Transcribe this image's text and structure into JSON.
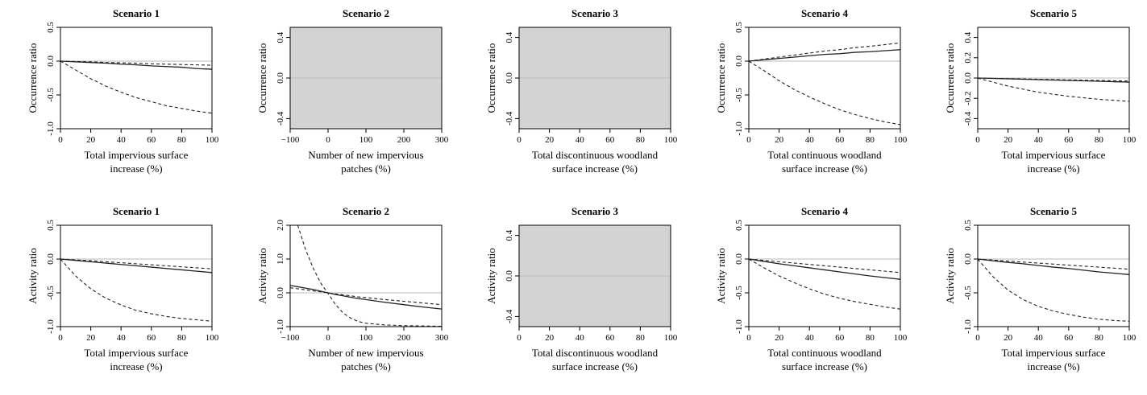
{
  "figure": {
    "line_color": "#222222",
    "ref_line_color": "#bbbbbb",
    "shade_color": "#d3d3d3"
  },
  "chart_data": [
    {
      "type": "line",
      "title": "Scenario 1",
      "ylabel": "Occurrence ratio",
      "xlabel": [
        "Total impervious surface",
        "increase (%)"
      ],
      "xlim": [
        0,
        100
      ],
      "ylim": [
        -1.0,
        0.5
      ],
      "xticks": [
        0,
        20,
        40,
        60,
        80,
        100
      ],
      "yticks": [
        -1.0,
        -0.5,
        0.0,
        0.5
      ],
      "ytick_labels": [
        "-1.0",
        "-0.5",
        "0.0",
        "0.5"
      ],
      "shaded": false,
      "reference_y": 0,
      "x": [
        0,
        10,
        20,
        30,
        40,
        50,
        60,
        70,
        80,
        90,
        100
      ],
      "series": [
        {
          "style": "solid",
          "values": [
            0,
            -0.01,
            -0.02,
            -0.03,
            -0.045,
            -0.055,
            -0.07,
            -0.08,
            -0.09,
            -0.11,
            -0.12
          ]
        },
        {
          "style": "dashed",
          "values": [
            0,
            -0.005,
            -0.01,
            -0.02,
            -0.025,
            -0.03,
            -0.04,
            -0.045,
            -0.05,
            -0.055,
            -0.06
          ]
        },
        {
          "style": "dashed",
          "values": [
            0,
            -0.13,
            -0.26,
            -0.37,
            -0.46,
            -0.54,
            -0.6,
            -0.66,
            -0.7,
            -0.74,
            -0.77
          ]
        }
      ]
    },
    {
      "type": "line",
      "title": "Scenario 2",
      "ylabel": "Occurrence ratio",
      "xlabel": [
        "Number of new impervious",
        "patches (%)"
      ],
      "xlim": [
        -100,
        300
      ],
      "ylim": [
        -0.5,
        0.5
      ],
      "xticks": [
        -100,
        0,
        100,
        200,
        300
      ],
      "yticks": [
        -0.4,
        0.0,
        0.4
      ],
      "ytick_labels": [
        "-0.4",
        "0.0",
        "0.4"
      ],
      "shaded": true,
      "reference_y": 0,
      "x": [],
      "series": []
    },
    {
      "type": "line",
      "title": "Scenario 3",
      "ylabel": "Occurrence ratio",
      "xlabel": [
        "Total discontinuous woodland",
        "surface increase (%)"
      ],
      "xlim": [
        0,
        100
      ],
      "ylim": [
        -0.5,
        0.5
      ],
      "xticks": [
        0,
        20,
        40,
        60,
        80,
        100
      ],
      "yticks": [
        -0.4,
        0.0,
        0.4
      ],
      "ytick_labels": [
        "-0.4",
        "0.0",
        "0.4"
      ],
      "shaded": true,
      "reference_y": 0,
      "x": [],
      "series": []
    },
    {
      "type": "line",
      "title": "Scenario 4",
      "ylabel": "Occurrence ratio",
      "xlabel": [
        "Total continuous woodland",
        "surface increase (%)"
      ],
      "xlim": [
        0,
        100
      ],
      "ylim": [
        -1.0,
        0.5
      ],
      "xticks": [
        0,
        20,
        40,
        60,
        80,
        100
      ],
      "yticks": [
        -1.0,
        -0.5,
        0.0,
        0.5
      ],
      "ytick_labels": [
        "-1.0",
        "-0.5",
        "0.0",
        "0.5"
      ],
      "shaded": false,
      "reference_y": 0,
      "x": [
        0,
        10,
        20,
        30,
        40,
        50,
        60,
        70,
        80,
        90,
        100
      ],
      "series": [
        {
          "style": "solid",
          "values": [
            0,
            0.02,
            0.04,
            0.06,
            0.08,
            0.1,
            0.11,
            0.13,
            0.14,
            0.155,
            0.17
          ]
        },
        {
          "style": "dashed",
          "values": [
            0,
            0.03,
            0.06,
            0.09,
            0.12,
            0.15,
            0.17,
            0.2,
            0.22,
            0.245,
            0.27
          ]
        },
        {
          "style": "dashed",
          "values": [
            0,
            -0.14,
            -0.29,
            -0.42,
            -0.53,
            -0.63,
            -0.72,
            -0.79,
            -0.85,
            -0.9,
            -0.94
          ]
        }
      ]
    },
    {
      "type": "line",
      "title": "Scenario 5",
      "ylabel": "Occurrence ratio",
      "xlabel": [
        "Total impervious surface",
        "increase (%)"
      ],
      "xlim": [
        0,
        100
      ],
      "ylim": [
        -0.5,
        0.5
      ],
      "xticks": [
        0,
        20,
        40,
        60,
        80,
        100
      ],
      "yticks": [
        -0.4,
        -0.2,
        0.0,
        0.2,
        0.4
      ],
      "ytick_labels": [
        "-0.4",
        "-0.2",
        "0.0",
        "0.2",
        "0.4"
      ],
      "shaded": false,
      "reference_y": 0,
      "x": [
        0,
        10,
        20,
        30,
        40,
        50,
        60,
        70,
        80,
        90,
        100
      ],
      "series": [
        {
          "style": "solid",
          "values": [
            0,
            -0.004,
            -0.008,
            -0.012,
            -0.016,
            -0.02,
            -0.024,
            -0.028,
            -0.032,
            -0.036,
            -0.04
          ]
        },
        {
          "style": "dashed",
          "values": [
            0,
            -0.003,
            -0.006,
            -0.009,
            -0.012,
            -0.015,
            -0.018,
            -0.021,
            -0.024,
            -0.027,
            -0.03
          ]
        },
        {
          "style": "dashed",
          "values": [
            0,
            -0.04,
            -0.08,
            -0.11,
            -0.14,
            -0.16,
            -0.18,
            -0.195,
            -0.21,
            -0.22,
            -0.23
          ]
        }
      ]
    },
    {
      "type": "line",
      "title": "Scenario 1",
      "ylabel": "Activity ratio",
      "xlabel": [
        "Total impervious surface",
        "increase (%)"
      ],
      "xlim": [
        0,
        100
      ],
      "ylim": [
        -1.0,
        0.5
      ],
      "xticks": [
        0,
        20,
        40,
        60,
        80,
        100
      ],
      "yticks": [
        -1.0,
        -0.5,
        0.0,
        0.5
      ],
      "ytick_labels": [
        "-1.0",
        "-0.5",
        "0.0",
        "0.5"
      ],
      "shaded": false,
      "reference_y": 0,
      "x": [
        0,
        10,
        20,
        30,
        40,
        50,
        60,
        70,
        80,
        90,
        100
      ],
      "series": [
        {
          "style": "solid",
          "values": [
            0,
            -0.02,
            -0.04,
            -0.06,
            -0.08,
            -0.1,
            -0.12,
            -0.14,
            -0.16,
            -0.18,
            -0.2
          ]
        },
        {
          "style": "dashed",
          "values": [
            0,
            -0.012,
            -0.025,
            -0.04,
            -0.055,
            -0.07,
            -0.085,
            -0.1,
            -0.115,
            -0.13,
            -0.145
          ]
        },
        {
          "style": "dashed",
          "values": [
            0,
            -0.25,
            -0.44,
            -0.58,
            -0.68,
            -0.76,
            -0.81,
            -0.85,
            -0.88,
            -0.9,
            -0.92
          ]
        }
      ]
    },
    {
      "type": "line",
      "title": "Scenario 2",
      "ylabel": "Activity ratio",
      "xlabel": [
        "Number of new impervious",
        "patches (%)"
      ],
      "xlim": [
        -100,
        300
      ],
      "ylim": [
        -1.0,
        2.0
      ],
      "xticks": [
        -100,
        0,
        100,
        200,
        300
      ],
      "yticks": [
        -1.0,
        0.0,
        1.0,
        2.0
      ],
      "ytick_labels": [
        "-1.0",
        "0.0",
        "1.0",
        "2.0"
      ],
      "shaded": false,
      "reference_y": 0,
      "x": [
        -100,
        -80,
        -60,
        -40,
        -20,
        0,
        20,
        40,
        60,
        80,
        100,
        150,
        200,
        250,
        300
      ],
      "series": [
        {
          "style": "solid",
          "values": [
            0.22,
            0.18,
            0.14,
            0.1,
            0.05,
            0,
            -0.05,
            -0.09,
            -0.13,
            -0.17,
            -0.2,
            -0.28,
            -0.35,
            -0.42,
            -0.48
          ]
        },
        {
          "style": "dashed",
          "values": [
            0.15,
            0.12,
            0.09,
            0.06,
            0.03,
            0,
            -0.03,
            -0.06,
            -0.09,
            -0.12,
            -0.14,
            -0.2,
            -0.25,
            -0.3,
            -0.35
          ]
        },
        {
          "style": "dashed",
          "values": [
            null,
            2.0,
            1.3,
            0.75,
            0.3,
            -0.02,
            -0.35,
            -0.6,
            -0.75,
            -0.85,
            -0.9,
            -0.95,
            -0.97,
            -0.98,
            -0.99
          ]
        }
      ]
    },
    {
      "type": "line",
      "title": "Scenario 3",
      "ylabel": "Activity ratio",
      "xlabel": [
        "Total discontinuous woodland",
        "surface increase (%)"
      ],
      "xlim": [
        0,
        100
      ],
      "ylim": [
        -0.5,
        0.5
      ],
      "xticks": [
        0,
        20,
        40,
        60,
        80,
        100
      ],
      "yticks": [
        -0.4,
        0.0,
        0.4
      ],
      "ytick_labels": [
        "-0.4",
        "0.0",
        "0.4"
      ],
      "shaded": true,
      "reference_y": 0,
      "x": [],
      "series": []
    },
    {
      "type": "line",
      "title": "Scenario 4",
      "ylabel": "Activity ratio",
      "xlabel": [
        "Total continuous woodland",
        "surface increase (%)"
      ],
      "xlim": [
        0,
        100
      ],
      "ylim": [
        -1.0,
        0.5
      ],
      "xticks": [
        0,
        20,
        40,
        60,
        80,
        100
      ],
      "yticks": [
        -1.0,
        -0.5,
        0.0,
        0.5
      ],
      "ytick_labels": [
        "-1.0",
        "-0.5",
        "0.0",
        "0.5"
      ],
      "shaded": false,
      "reference_y": 0,
      "x": [
        0,
        10,
        20,
        30,
        40,
        50,
        60,
        70,
        80,
        90,
        100
      ],
      "series": [
        {
          "style": "solid",
          "values": [
            0,
            -0.035,
            -0.07,
            -0.1,
            -0.13,
            -0.16,
            -0.19,
            -0.22,
            -0.25,
            -0.275,
            -0.3
          ]
        },
        {
          "style": "dashed",
          "values": [
            0,
            -0.02,
            -0.04,
            -0.06,
            -0.08,
            -0.1,
            -0.12,
            -0.14,
            -0.16,
            -0.18,
            -0.2
          ]
        },
        {
          "style": "dashed",
          "values": [
            0,
            -0.13,
            -0.25,
            -0.35,
            -0.44,
            -0.52,
            -0.58,
            -0.63,
            -0.67,
            -0.71,
            -0.74
          ]
        }
      ]
    },
    {
      "type": "line",
      "title": "Scenario 5",
      "ylabel": "Activity ratio",
      "xlabel": [
        "Total impervious surface",
        "increase (%)"
      ],
      "xlim": [
        0,
        100
      ],
      "ylim": [
        -1.0,
        0.5
      ],
      "xticks": [
        0,
        20,
        40,
        60,
        80,
        100
      ],
      "yticks": [
        -1.0,
        -0.5,
        0.0,
        0.5
      ],
      "ytick_labels": [
        "-1.0",
        "-0.5",
        "0.0",
        "0.5"
      ],
      "shaded": false,
      "reference_y": 0,
      "x": [
        0,
        10,
        20,
        30,
        40,
        50,
        60,
        70,
        80,
        90,
        100
      ],
      "series": [
        {
          "style": "solid",
          "values": [
            0,
            -0.025,
            -0.05,
            -0.07,
            -0.095,
            -0.12,
            -0.14,
            -0.165,
            -0.19,
            -0.21,
            -0.23
          ]
        },
        {
          "style": "dashed",
          "values": [
            0,
            -0.015,
            -0.03,
            -0.045,
            -0.06,
            -0.075,
            -0.09,
            -0.105,
            -0.12,
            -0.135,
            -0.15
          ]
        },
        {
          "style": "dashed",
          "values": [
            0,
            -0.26,
            -0.46,
            -0.6,
            -0.7,
            -0.77,
            -0.82,
            -0.86,
            -0.89,
            -0.91,
            -0.92
          ]
        }
      ]
    }
  ]
}
